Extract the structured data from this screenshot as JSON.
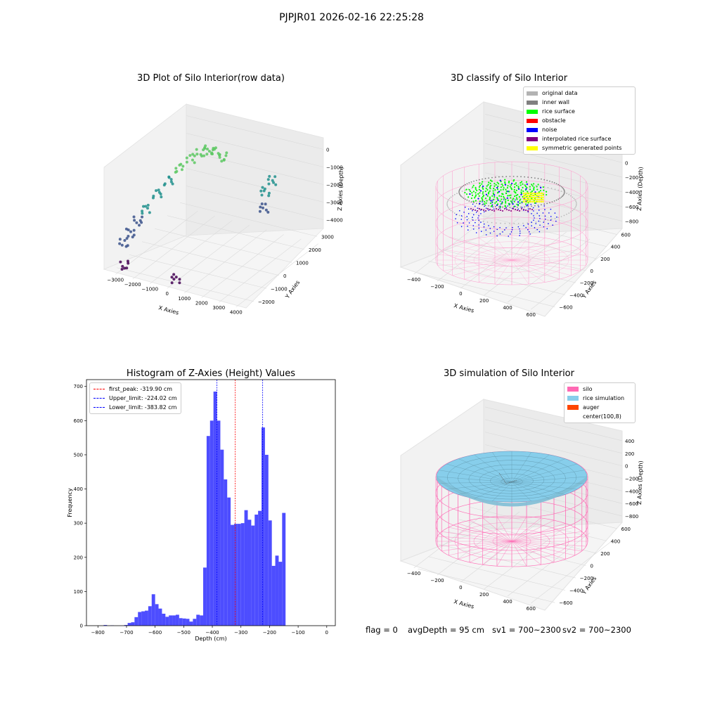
{
  "figure": {
    "suptitle": "PJPJR01 2026-02-16 22:25:28",
    "status": {
      "flag": "flag = 0",
      "avg_depth": "avgDepth = 95 cm",
      "sv1": "sv1 = 700~2300",
      "sv2": "sv2 = 700~2300"
    }
  },
  "chart_data": [
    {
      "type": "scatter",
      "projection": "3d",
      "title": "3D Plot of Silo Interior(row data)",
      "xlabel": "X Axies",
      "ylabel": "Y Axies",
      "zlabel": "Z Axies (Depth)",
      "x_ticks": [
        "−3000",
        "−2000",
        "−1000",
        "0",
        "1000",
        "2000",
        "3000",
        "4000"
      ],
      "y_ticks": [
        "−2000",
        "−1000",
        "0",
        "1000",
        "2000",
        "3000"
      ],
      "z_ticks": [
        "0",
        "−1000",
        "−2000",
        "−3000",
        "−4000"
      ],
      "colormap": "viridis",
      "colormap_stops": [
        "#440154",
        "#3b528b",
        "#21908d",
        "#5dc863",
        "#fde725"
      ],
      "series": [
        {
          "points": [
            {
              "x": -2800,
              "y": -1800,
              "z": -3600
            },
            {
              "x": -2600,
              "y": -1600,
              "z": -3300
            },
            {
              "x": -2300,
              "y": -1400,
              "z": -2900
            },
            {
              "x": -2000,
              "y": -1200,
              "z": -2500
            },
            {
              "x": -1600,
              "y": -900,
              "z": -2000
            },
            {
              "x": -1200,
              "y": -600,
              "z": -1600
            },
            {
              "x": -800,
              "y": -300,
              "z": -1200
            },
            {
              "x": -400,
              "y": 0,
              "z": -900
            },
            {
              "x": 0,
              "y": 200,
              "z": -700
            },
            {
              "x": 300,
              "y": 400,
              "z": -650
            },
            {
              "x": 600,
              "y": 500,
              "z": -700
            },
            {
              "x": 900,
              "y": 600,
              "z": -900
            },
            {
              "x": 2600,
              "y": 1500,
              "z": -2300
            },
            {
              "x": 2800,
              "y": 1800,
              "z": -2000
            },
            {
              "x": 2700,
              "y": 1300,
              "z": -2800
            },
            {
              "x": -2500,
              "y": -2200,
              "z": -4200
            },
            {
              "x": 200,
              "y": -2000,
              "z": -4300
            }
          ]
        }
      ]
    },
    {
      "type": "scatter",
      "projection": "3d",
      "title": "3D classify of Silo Interior",
      "xlabel": "X Axies",
      "ylabel": "Y Axies",
      "zlabel": "Z Axies (Depth)",
      "x_ticks": [
        "−400",
        "−200",
        "0",
        "200",
        "400",
        "600"
      ],
      "y_ticks": [
        "−600",
        "−400",
        "−200",
        "0",
        "200",
        "400",
        "600"
      ],
      "z_ticks": [
        "200",
        "0",
        "−200",
        "−400",
        "−600",
        "−800"
      ],
      "legend_position": "top-right",
      "legend": [
        {
          "label": "original data",
          "color": "#b3b3b3"
        },
        {
          "label": "inner wall",
          "color": "#808080"
        },
        {
          "label": "rice surface",
          "color": "#00ff00"
        },
        {
          "label": "obstacle",
          "color": "#ff0000"
        },
        {
          "label": "noise",
          "color": "#0000ff"
        },
        {
          "label": "interpolated rice surface",
          "color": "#800080"
        },
        {
          "label": "symmetric generated points",
          "color": "#ffff00"
        }
      ]
    },
    {
      "type": "bar",
      "title": "Histogram of Z-Axies (Height) Values",
      "xlabel": "Depth (cm)",
      "ylabel": "Frequency",
      "xlim": [
        -840,
        30
      ],
      "ylim": [
        0,
        720
      ],
      "bar_color": "#4d4dff",
      "bin_width": 12,
      "x_ticks": [
        -800,
        -700,
        -600,
        -500,
        -400,
        -300,
        -200,
        -100,
        0
      ],
      "y_ticks": [
        0,
        100,
        200,
        300,
        400,
        500,
        600,
        700
      ],
      "bin_starts": [
        -780,
        -768,
        -756,
        -744,
        -732,
        -720,
        -708,
        -696,
        -684,
        -672,
        -660,
        -648,
        -636,
        -624,
        -612,
        -600,
        -588,
        -576,
        -564,
        -552,
        -540,
        -528,
        -516,
        -504,
        -492,
        -480,
        -468,
        -456,
        -444,
        -432,
        -420,
        -408,
        -396,
        -384,
        -372,
        -360,
        -348,
        -336,
        -324,
        -312,
        -300,
        -288,
        -276,
        -264,
        -252,
        -240,
        -228,
        -216,
        -204,
        -192,
        -180,
        -168,
        -156,
        -144,
        -132,
        -120,
        -108,
        -96,
        -84,
        -72,
        -60,
        -48,
        -36,
        -24,
        -12
      ],
      "values": [
        2,
        0,
        1,
        0,
        0,
        0,
        2,
        8,
        10,
        25,
        40,
        42,
        44,
        57,
        92,
        63,
        50,
        35,
        26,
        30,
        30,
        32,
        22,
        21,
        20,
        12,
        20,
        32,
        30,
        170,
        555,
        600,
        685,
        600,
        515,
        428,
        375,
        295,
        298,
        298,
        300,
        338,
        310,
        293,
        325,
        336,
        580,
        500,
        308,
        175,
        205,
        187,
        330,
        0,
        0,
        0,
        0,
        0,
        0,
        0,
        0,
        0,
        0,
        0,
        0
      ],
      "lines": [
        {
          "label": "first_peak: -319.90 cm",
          "value": -319.9,
          "color": "#ff0000"
        },
        {
          "label": "Upper_limit: -224.02 cm",
          "value": -224.02,
          "color": "#0000ff"
        },
        {
          "label": "Lower_limit: -383.82 cm",
          "value": -383.82,
          "color": "#0000ff"
        }
      ],
      "legend_position": "top-left"
    },
    {
      "type": "surface",
      "projection": "3d",
      "title": "3D simulation of Silo Interior",
      "xlabel": "X Axies",
      "ylabel": "Y Axies",
      "zlabel": "Z Axies (Depth)",
      "x_ticks": [
        "−400",
        "−200",
        "0",
        "200",
        "400",
        "600"
      ],
      "y_ticks": [
        "−600",
        "−400",
        "−200",
        "0",
        "200",
        "400",
        "600"
      ],
      "z_ticks": [
        "400",
        "200",
        "0",
        "−200",
        "−400",
        "−600",
        "−800"
      ],
      "legend_position": "top-right",
      "legend": [
        {
          "label": "silo",
          "color": "#ff69b4"
        },
        {
          "label": "rice simulation",
          "color": "#87ceeb"
        },
        {
          "label": "auger",
          "color": "#ff4500"
        },
        {
          "label": "center(100,8)",
          "color": "#ffffff"
        }
      ]
    }
  ]
}
